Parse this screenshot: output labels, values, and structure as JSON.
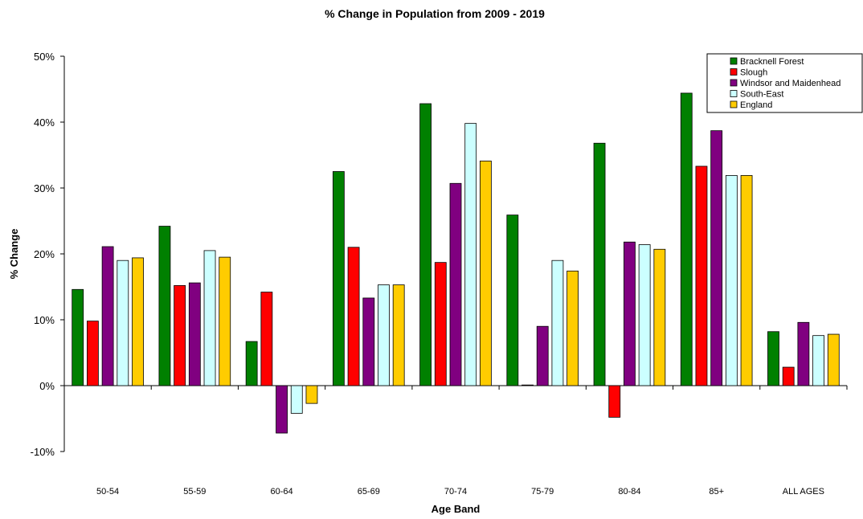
{
  "chart_data": {
    "type": "bar",
    "title": "% Change in Population from 2009 - 2019",
    "xlabel": "Age Band",
    "ylabel": "% Change",
    "ylim": [
      -10,
      50
    ],
    "yticks": [
      -10,
      0,
      10,
      20,
      30,
      40,
      50
    ],
    "ytick_labels": [
      "-10%",
      "0%",
      "10%",
      "20%",
      "30%",
      "40%",
      "50%"
    ],
    "grid": false,
    "legend_position": "top-right",
    "categories": [
      "50-54",
      "55-59",
      "60-64",
      "65-69",
      "70-74",
      "75-79",
      "80-84",
      "85+",
      "ALL AGES"
    ],
    "series": [
      {
        "name": "Bracknell Forest",
        "color": "#008000",
        "values": [
          14.6,
          24.2,
          6.7,
          32.5,
          42.8,
          25.9,
          36.8,
          44.4,
          8.2
        ]
      },
      {
        "name": "Slough",
        "color": "#ff0000",
        "values": [
          9.8,
          15.2,
          14.2,
          21.0,
          18.7,
          0.1,
          -4.8,
          33.3,
          2.8
        ]
      },
      {
        "name": "Windsor and Maidenhead",
        "color": "#800080",
        "values": [
          21.1,
          15.6,
          -7.2,
          13.3,
          30.7,
          9.0,
          21.8,
          38.7,
          9.6
        ]
      },
      {
        "name": "South-East",
        "color": "#ccffff",
        "values": [
          19.0,
          20.5,
          -4.2,
          15.3,
          39.8,
          19.0,
          21.4,
          31.9,
          7.6
        ]
      },
      {
        "name": "England",
        "color": "#ffcc00",
        "values": [
          19.4,
          19.5,
          -2.7,
          15.3,
          34.1,
          17.4,
          20.7,
          31.9,
          7.8
        ]
      }
    ]
  }
}
